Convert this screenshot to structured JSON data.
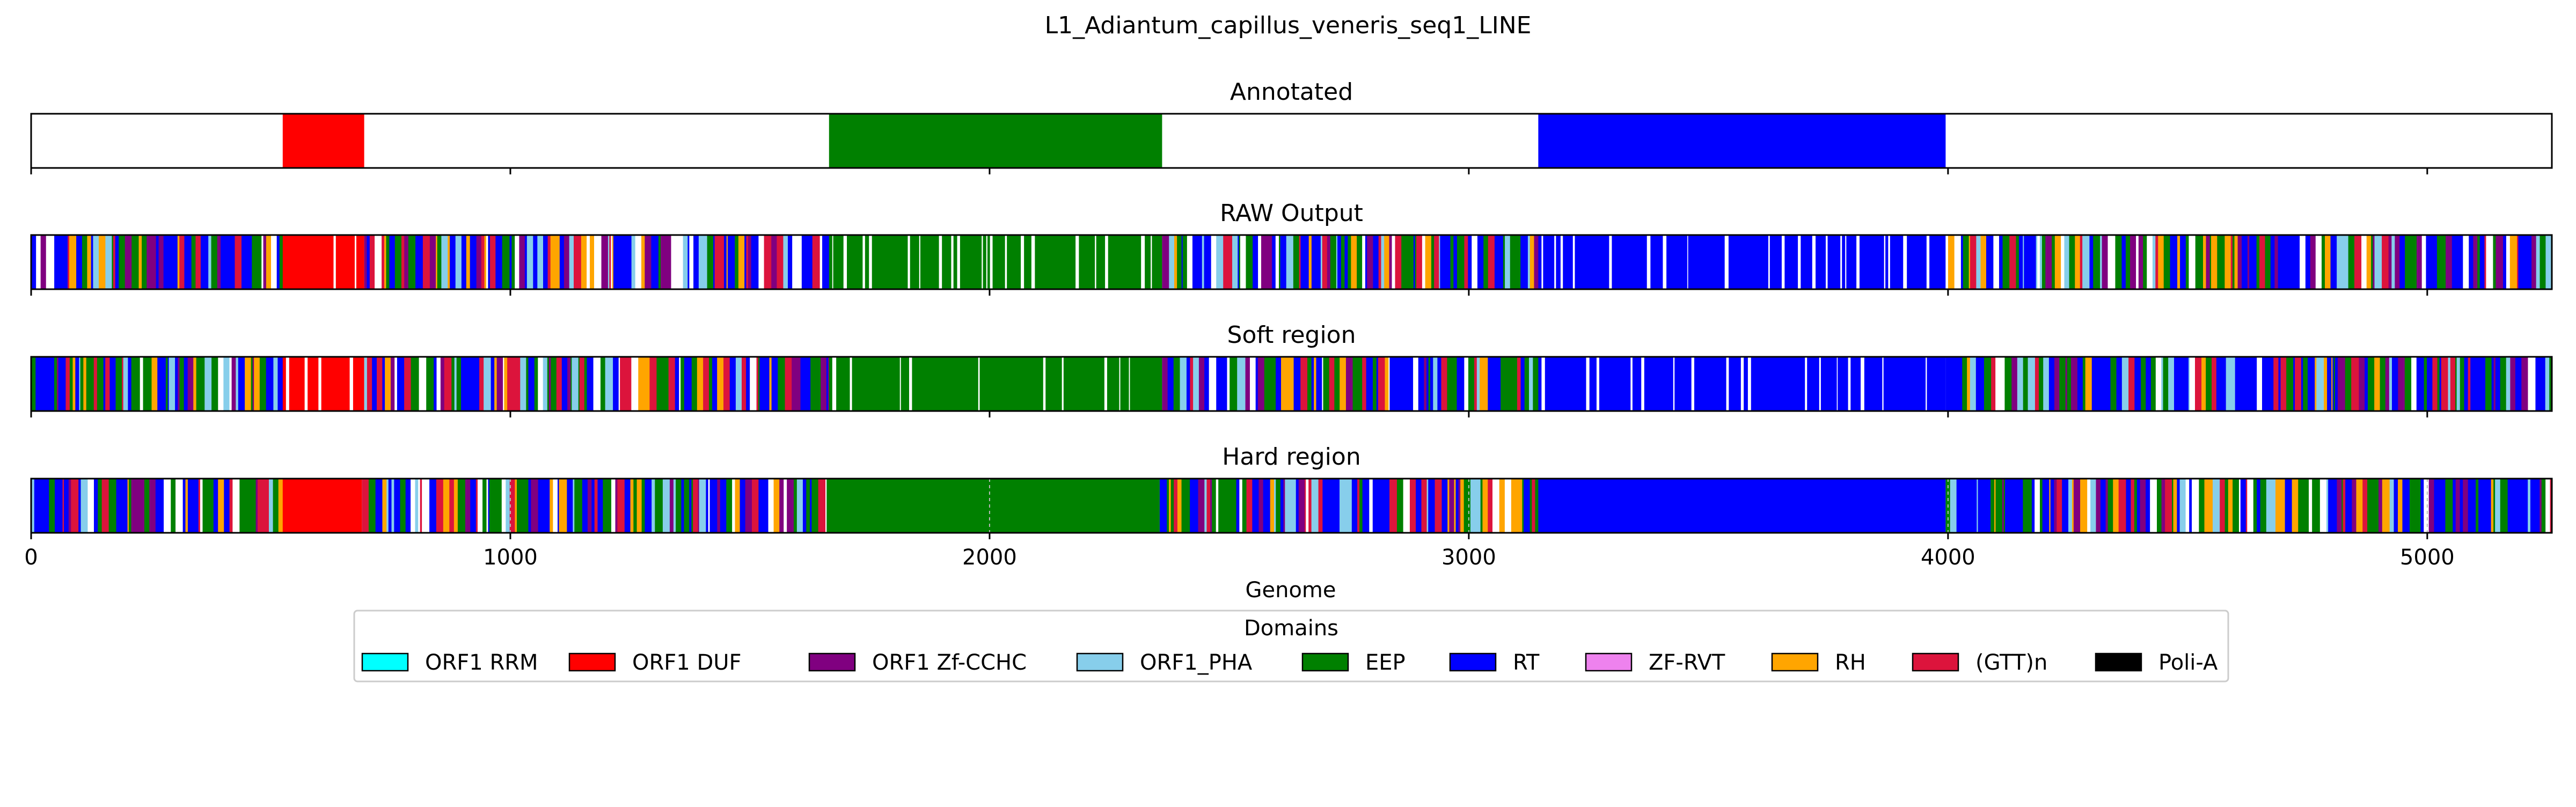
{
  "figure": {
    "title": "L1_Adiantum_capillus_veneris_seq1_LINE",
    "xlabel": "Genome"
  },
  "chart_data": {
    "type": "bar",
    "orientation": "horizontal-tracks",
    "xlim": [
      0,
      5260
    ],
    "xticks": [
      0,
      1000,
      2000,
      3000,
      4000,
      5000
    ],
    "grid": false,
    "legend_position": "bottom-center",
    "legend": {
      "title": "Domains",
      "entries": [
        {
          "label": "ORF1 RRM",
          "color": "#00ffff"
        },
        {
          "label": "ORF1 DUF",
          "color": "#ff0000"
        },
        {
          "label": "ORF1 Zf-CCHC",
          "color": "#800080"
        },
        {
          "label": "ORF1_PHA",
          "color": "#87ceeb"
        },
        {
          "label": "EEP",
          "color": "#008000"
        },
        {
          "label": "RT",
          "color": "#0000ff"
        },
        {
          "label": "ZF-RVT",
          "color": "#ee82ee"
        },
        {
          "label": "RH",
          "color": "#ffa500"
        },
        {
          "label": "(GTT)n",
          "color": "#dc143c"
        },
        {
          "label": "Poli-A",
          "color": "#000000"
        }
      ]
    },
    "panels": [
      {
        "title": "Annotated",
        "segments": [
          {
            "domain": "ORF1 DUF",
            "start": 525,
            "end": 695
          },
          {
            "domain": "EEP",
            "start": 1665,
            "end": 2360
          },
          {
            "domain": "RT",
            "start": 3145,
            "end": 3995
          }
        ]
      },
      {
        "title": "RAW Output",
        "style": "noisy",
        "regions": [
          {
            "domain": "mixed",
            "start": 0,
            "end": 525
          },
          {
            "domain": "ORF1 DUF",
            "start": 525,
            "end": 695
          },
          {
            "domain": "mixed",
            "start": 695,
            "end": 1665
          },
          {
            "domain": "EEP",
            "start": 1665,
            "end": 2360
          },
          {
            "domain": "mixed",
            "start": 2360,
            "end": 3145
          },
          {
            "domain": "RT",
            "start": 3145,
            "end": 3995
          },
          {
            "domain": "mixed",
            "start": 3995,
            "end": 5260
          }
        ]
      },
      {
        "title": "Soft region",
        "style": "noisy",
        "regions": [
          {
            "domain": "mixed",
            "start": 0,
            "end": 525
          },
          {
            "domain": "ORF1 DUF",
            "start": 525,
            "end": 695
          },
          {
            "domain": "mixed",
            "start": 695,
            "end": 1665
          },
          {
            "domain": "EEP",
            "start": 1665,
            "end": 2360
          },
          {
            "domain": "mixed",
            "start": 2360,
            "end": 3145
          },
          {
            "domain": "RT",
            "start": 3145,
            "end": 3995
          },
          {
            "domain": "mixed",
            "start": 3995,
            "end": 5260
          }
        ]
      },
      {
        "title": "Hard region",
        "style": "hard",
        "regions": [
          {
            "domain": "mixed",
            "start": 0,
            "end": 525
          },
          {
            "domain": "ORF1 DUF",
            "start": 525,
            "end": 690
          },
          {
            "domain": "mixed",
            "start": 690,
            "end": 1660
          },
          {
            "domain": "EEP",
            "start": 1660,
            "end": 2355
          },
          {
            "domain": "mixed",
            "start": 2355,
            "end": 3145
          },
          {
            "domain": "RT",
            "start": 3145,
            "end": 3995
          },
          {
            "domain": "mixed",
            "start": 3995,
            "end": 5260
          }
        ]
      }
    ]
  }
}
